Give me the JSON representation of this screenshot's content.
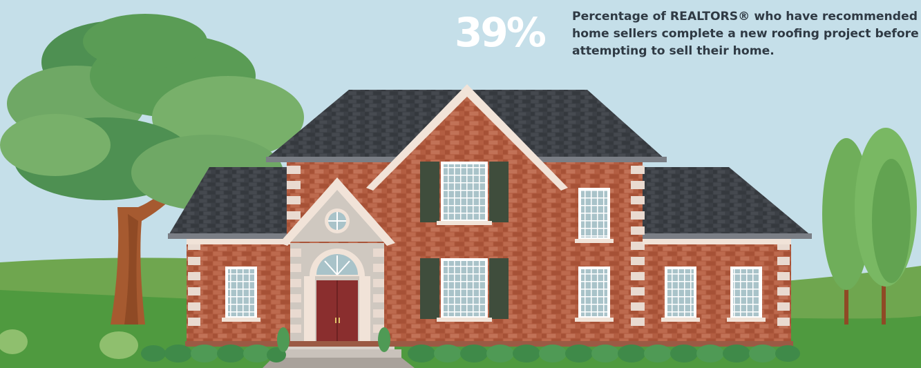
{
  "stat": {
    "value": "39%",
    "description_lines": [
      "Percentage of REALTORS® who have recommended",
      "home sellers complete a new roofing project before",
      "attempting to sell their home."
    ]
  },
  "colors": {
    "sky": "#c5dfe9",
    "stat_text": "#ffffff",
    "caption_text": "#2f3a44",
    "roof": "#3b3f45",
    "brick": "#b05a3f",
    "trim": "#f1e3d8",
    "shutter": "#3f4d3c",
    "door": "#8a2e2e",
    "lawn": "#4f9a3f",
    "tree_foliage": "#5f9e4a"
  },
  "icons": [
    "house-illustration",
    "tree-icon",
    "shrub-icon",
    "poplar-tree-icon"
  ]
}
